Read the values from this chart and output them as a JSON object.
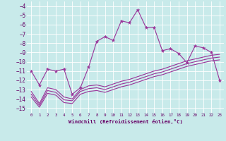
{
  "xlabel": "Windchill (Refroidissement éolien,°C)",
  "bg_color": "#c8eaea",
  "grid_color": "#aadddd",
  "line_color": "#993399",
  "xlim": [
    -0.5,
    23.5
  ],
  "ylim": [
    -15.5,
    -3.5
  ],
  "xticks": [
    0,
    1,
    2,
    3,
    4,
    5,
    6,
    7,
    8,
    9,
    10,
    11,
    12,
    13,
    14,
    15,
    16,
    17,
    18,
    19,
    20,
    21,
    22,
    23
  ],
  "yticks": [
    -15,
    -14,
    -13,
    -12,
    -11,
    -10,
    -9,
    -8,
    -7,
    -6,
    -5,
    -4
  ],
  "line1_x": [
    0,
    1,
    2,
    3,
    4,
    5,
    6,
    7,
    8,
    9,
    10,
    11,
    12,
    13,
    14,
    15,
    16,
    17,
    18,
    19,
    20,
    21,
    22,
    23
  ],
  "line1_y": [
    -11.0,
    -12.5,
    -10.8,
    -11.0,
    -10.8,
    -13.5,
    -12.8,
    -10.6,
    -7.8,
    -7.3,
    -7.7,
    -5.6,
    -5.8,
    -4.4,
    -6.3,
    -6.3,
    -8.8,
    -8.6,
    -9.1,
    -10.1,
    -8.3,
    -8.5,
    -9.0,
    -12.0
  ],
  "line2_x": [
    0,
    1,
    2,
    3,
    4,
    5,
    6,
    7,
    8,
    9,
    10,
    11,
    12,
    13,
    14,
    15,
    16,
    17,
    18,
    19,
    20,
    21,
    22,
    23
  ],
  "line2_y": [
    -13.2,
    -14.5,
    -12.8,
    -13.0,
    -13.8,
    -14.0,
    -13.0,
    -12.6,
    -12.5,
    -12.7,
    -12.4,
    -12.1,
    -11.9,
    -11.6,
    -11.3,
    -11.0,
    -10.8,
    -10.5,
    -10.2,
    -9.9,
    -9.7,
    -9.5,
    -9.3,
    -9.2
  ],
  "line3_x": [
    0,
    1,
    2,
    3,
    4,
    5,
    6,
    7,
    8,
    9,
    10,
    11,
    12,
    13,
    14,
    15,
    16,
    17,
    18,
    19,
    20,
    21,
    22,
    23
  ],
  "line3_y": [
    -13.5,
    -14.7,
    -13.1,
    -13.3,
    -14.1,
    -14.2,
    -13.2,
    -12.9,
    -12.8,
    -13.0,
    -12.7,
    -12.4,
    -12.2,
    -11.9,
    -11.6,
    -11.3,
    -11.1,
    -10.8,
    -10.5,
    -10.2,
    -10.0,
    -9.8,
    -9.6,
    -9.5
  ],
  "line4_x": [
    0,
    1,
    2,
    3,
    4,
    5,
    6,
    7,
    8,
    9,
    10,
    11,
    12,
    13,
    14,
    15,
    16,
    17,
    18,
    19,
    20,
    21,
    22,
    23
  ],
  "line4_y": [
    -13.8,
    -14.9,
    -13.4,
    -13.6,
    -14.4,
    -14.5,
    -13.5,
    -13.2,
    -13.1,
    -13.3,
    -13.0,
    -12.7,
    -12.5,
    -12.2,
    -11.9,
    -11.6,
    -11.4,
    -11.1,
    -10.8,
    -10.5,
    -10.3,
    -10.1,
    -9.9,
    -9.8
  ]
}
